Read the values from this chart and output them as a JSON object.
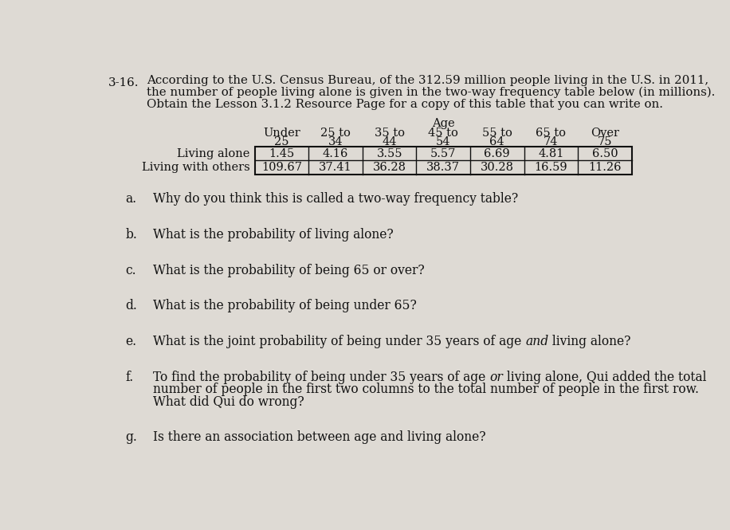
{
  "problem_number": "3-16.",
  "intro_line1": "According to the U.S. Census Bureau, of the 312.59 million people living in the U.S. in 2011,",
  "intro_line2": "the number of people living alone is given in the two-way frequency table below (in millions).",
  "intro_line3": "Obtain the Lesson 3.1.2 Resource Page for a copy of this table that you can write on.",
  "age_label": "Age",
  "col_headers_line1": [
    "Under",
    "25 to",
    "35 to",
    "45 to",
    "55 to",
    "65 to",
    "Over"
  ],
  "col_headers_line2": [
    "25",
    "34",
    "44",
    "54",
    "64",
    "74",
    "75"
  ],
  "row_labels": [
    "Living alone",
    "Living with others"
  ],
  "data": [
    [
      "1.45",
      "4.16",
      "3.55",
      "5.57",
      "6.69",
      "4.81",
      "6.50"
    ],
    [
      "109.67",
      "37.41",
      "36.28",
      "38.37",
      "30.28",
      "16.59",
      "11.26"
    ]
  ],
  "q_a_label": "a.",
  "q_a_text": "Why do you think this is called a two-way frequency table?",
  "q_b_label": "b.",
  "q_b_text": "What is the probability of living alone?",
  "q_c_label": "c.",
  "q_c_text": "What is the probability of being 65 or over?",
  "q_d_label": "d.",
  "q_d_text": "What is the probability of being under 65?",
  "q_e_label": "e.",
  "q_e_part1": "What is the joint probability of being under 35 years of age ",
  "q_e_italic": "and",
  "q_e_part2": " living alone?",
  "q_f_label": "f.",
  "q_f_line1_part1": "To find the probability of being under 35 years of age ",
  "q_f_line1_italic": "or",
  "q_f_line1_part2": " living alone, Qui added the total",
  "q_f_line2": "number of people in the first two columns to the total number of people in the first row.",
  "q_f_line3": "What did Qui do wrong?",
  "q_g_label": "g.",
  "q_g_text": "Is there an association between age and living alone?",
  "bg_color": "#dedad4",
  "text_color": "#111111",
  "table_border_color": "#111111",
  "font_size_intro": 10.8,
  "font_size_table": 10.5,
  "font_size_questions": 11.2
}
